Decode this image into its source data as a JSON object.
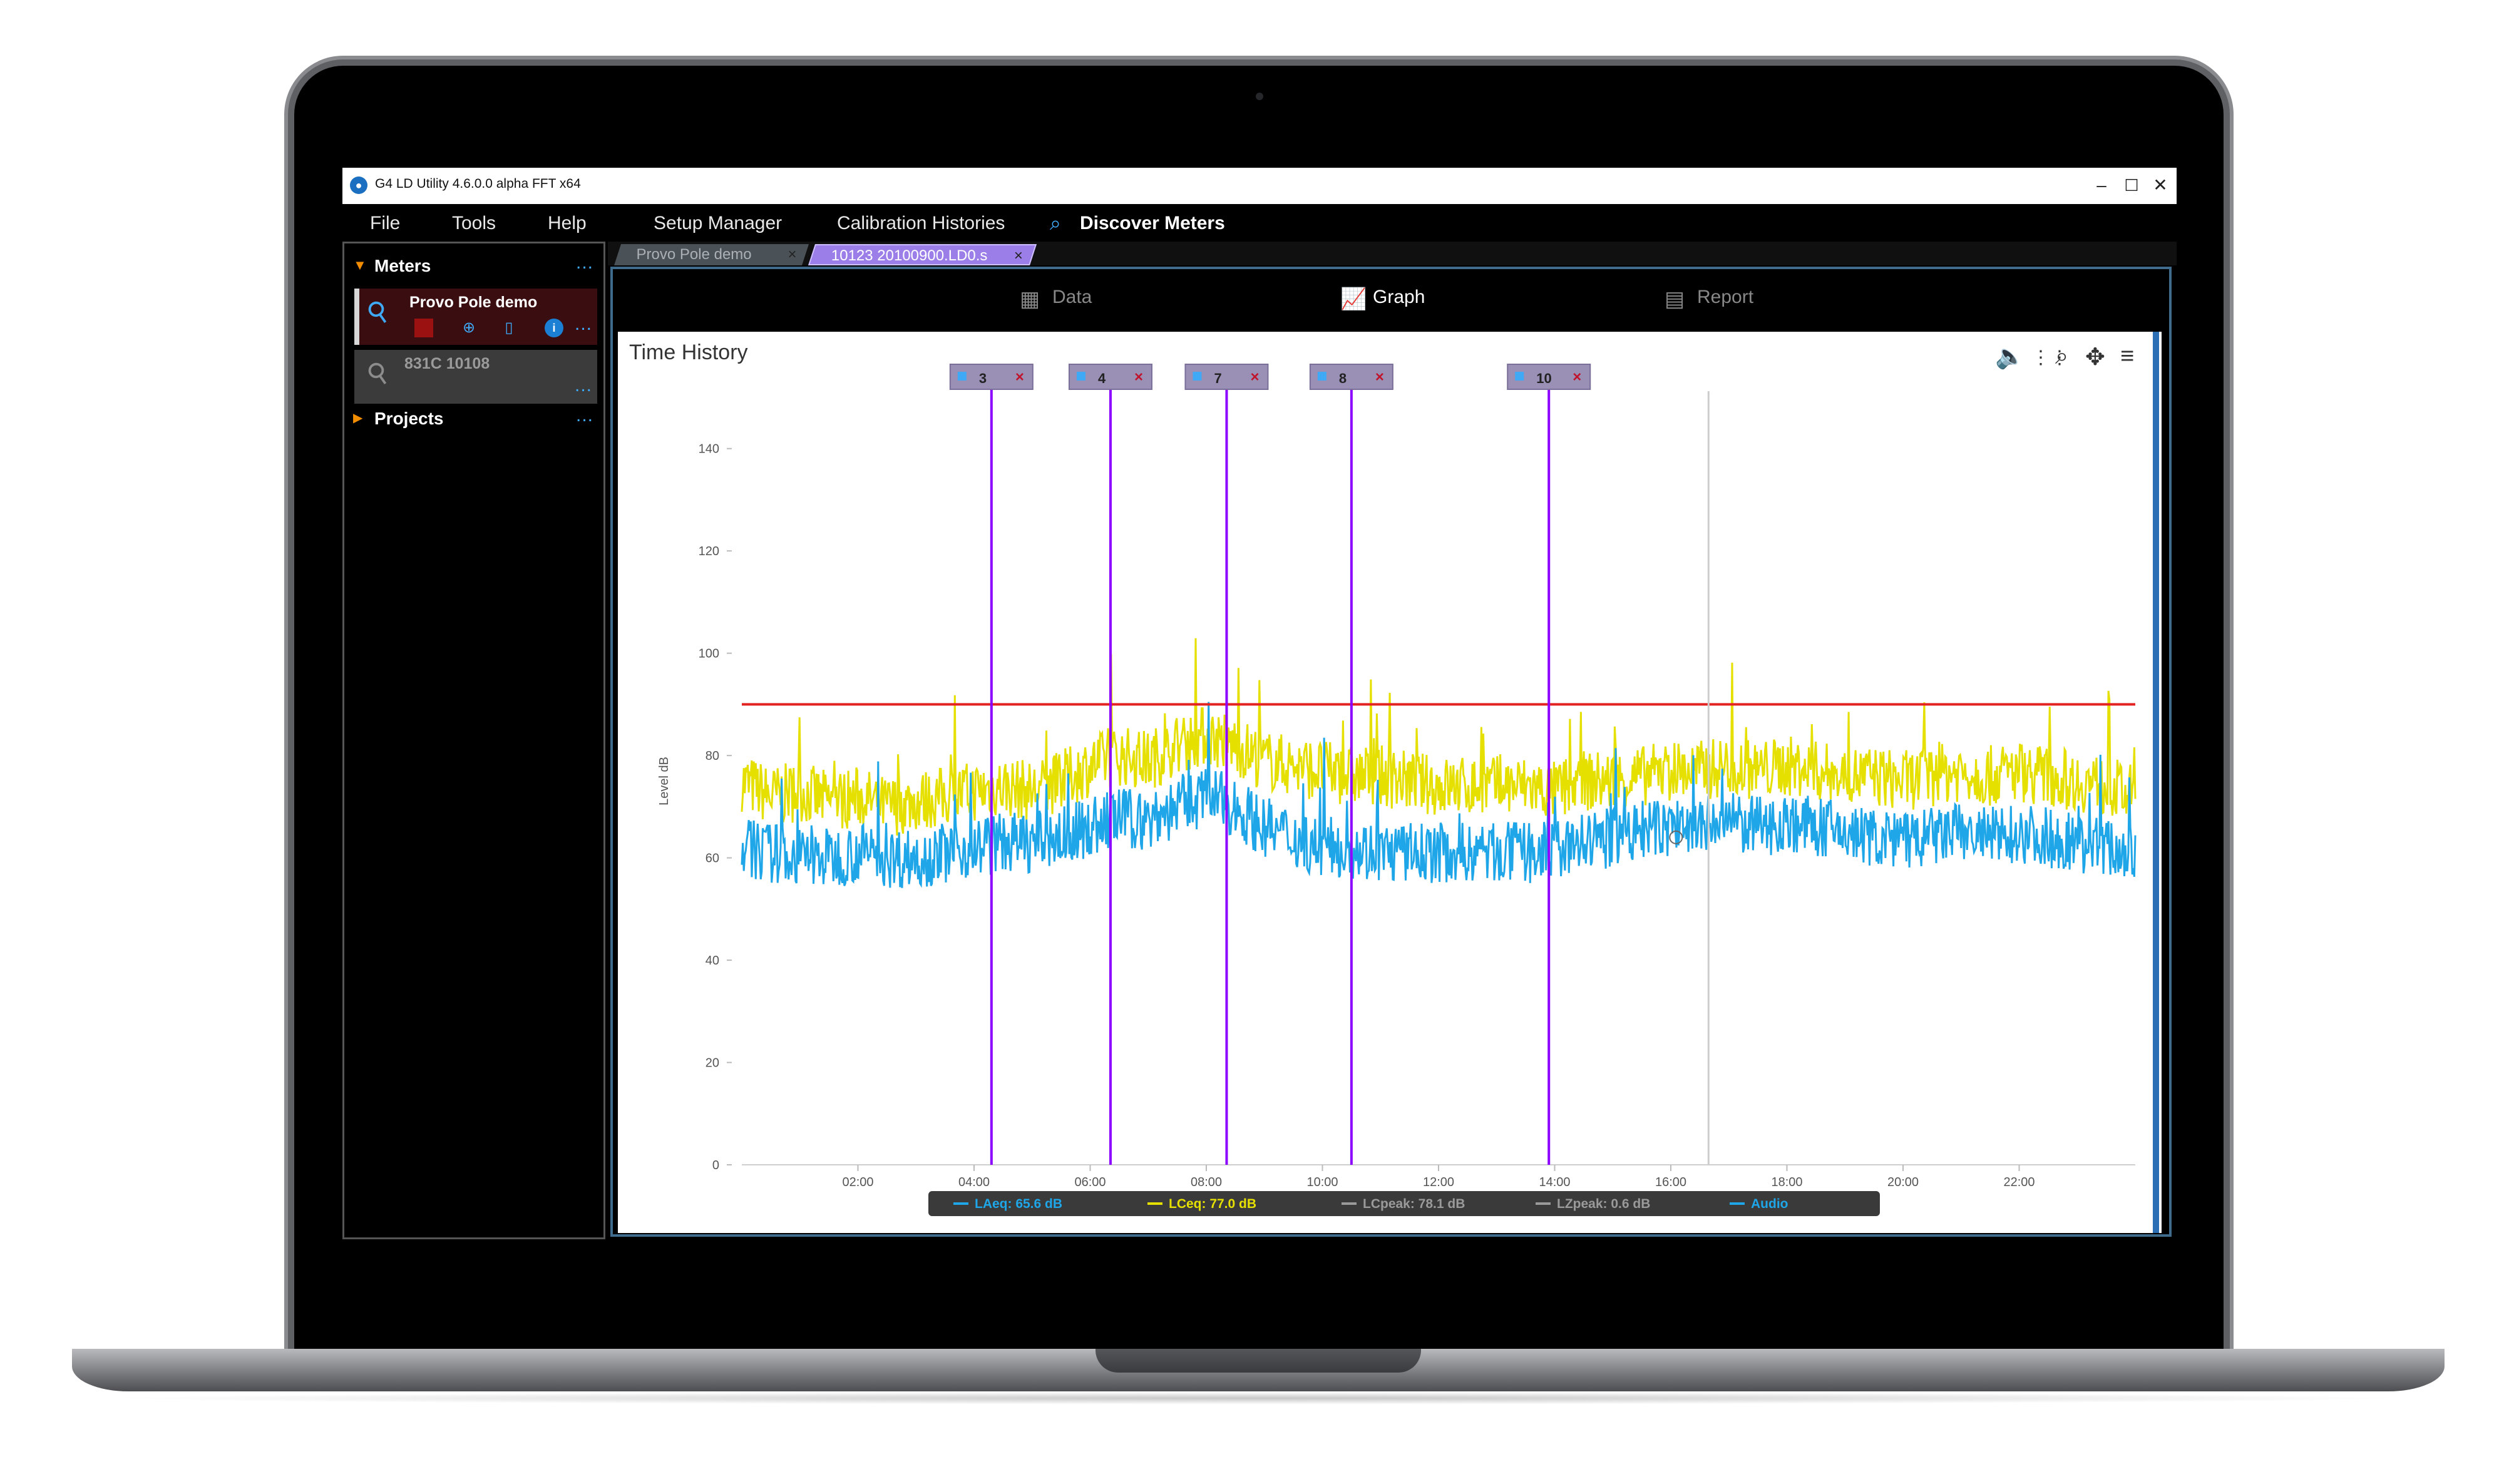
{
  "window": {
    "title": "G4 LD Utility 4.6.0.0 alpha FFT x64",
    "minimize": "–",
    "maximize": "☐",
    "close": "✕"
  },
  "menu": {
    "file": "File",
    "tools": "Tools",
    "help": "Help",
    "setup_manager": "Setup Manager",
    "calibration_histories": "Calibration Histories",
    "discover_meters": "Discover Meters"
  },
  "sidebar": {
    "meters_label": "Meters",
    "projects_label": "Projects",
    "more": "...",
    "meters": [
      {
        "name": "Provo Pole demo"
      },
      {
        "name": "831C 10108"
      }
    ]
  },
  "tabs": [
    {
      "label": "Provo Pole demo",
      "close": "×"
    },
    {
      "label": "10123 20100900.LD0.s",
      "close": "×"
    }
  ],
  "view_tabs": {
    "data": "Data",
    "graph": "Graph",
    "report": "Report"
  },
  "chart_data": {
    "type": "line",
    "title": "Time History",
    "ylabel": "Level dB",
    "xlabel": "",
    "ylim": [
      0,
      150
    ],
    "xlim": [
      0,
      24
    ],
    "yticks": [
      0,
      20,
      40,
      60,
      80,
      100,
      120,
      140
    ],
    "xticks": [
      {
        "t": 2,
        "label": "02:00"
      },
      {
        "t": 4,
        "label": "04:00"
      },
      {
        "t": 6,
        "label": "06:00"
      },
      {
        "t": 8,
        "label": "08:00"
      },
      {
        "t": 10,
        "label": "10:00"
      },
      {
        "t": 12,
        "label": "12:00"
      },
      {
        "t": 14,
        "label": "14:00"
      },
      {
        "t": 16,
        "label": "16:00"
      },
      {
        "t": 18,
        "label": "18:00"
      },
      {
        "t": 20,
        "label": "20:00"
      },
      {
        "t": 22,
        "label": "22:00"
      }
    ],
    "threshold": 90,
    "cursor_time": 16.65,
    "markers": [
      {
        "label": "3",
        "t": 4.3
      },
      {
        "label": "4",
        "t": 6.35
      },
      {
        "label": "7",
        "t": 8.35
      },
      {
        "label": "8",
        "t": 10.5
      },
      {
        "label": "10",
        "t": 13.9
      }
    ],
    "series": [
      {
        "name": "LCeq",
        "color": "#e6e000",
        "x": [
          0,
          0.5,
          1,
          1.5,
          2,
          2.5,
          3,
          3.5,
          4,
          4.5,
          5,
          5.5,
          6,
          6.5,
          7,
          7.5,
          8,
          8.5,
          9,
          9.5,
          10,
          10.5,
          11,
          11.5,
          12,
          12.5,
          13,
          13.5,
          14,
          14.5,
          15,
          15.5,
          16,
          16.5,
          17,
          17.5,
          18,
          18.5,
          19,
          19.5,
          20,
          20.5,
          21,
          21.5,
          22,
          22.5,
          23,
          23.5,
          24
        ],
        "y": [
          75,
          72,
          73,
          71,
          72,
          70,
          71,
          72,
          73,
          74,
          73,
          75,
          78,
          80,
          79,
          82,
          84,
          82,
          79,
          78,
          77,
          76,
          76,
          75,
          74,
          74,
          74,
          74,
          73,
          75,
          75,
          76,
          77,
          77,
          78,
          77,
          78,
          77,
          76,
          76,
          75,
          76,
          77,
          76,
          77,
          76,
          75,
          74,
          72
        ]
      },
      {
        "name": "LAeq",
        "color": "#1ea6e8",
        "x": [
          0,
          0.5,
          1,
          1.5,
          2,
          2.5,
          3,
          3.5,
          4,
          4.5,
          5,
          5.5,
          6,
          6.5,
          7,
          7.5,
          8,
          8.5,
          9,
          9.5,
          10,
          10.5,
          11,
          11.5,
          12,
          12.5,
          13,
          13.5,
          14,
          14.5,
          15,
          15.5,
          16,
          16.5,
          17,
          17.5,
          18,
          18.5,
          19,
          19.5,
          20,
          20.5,
          21,
          21.5,
          22,
          22.5,
          23,
          23.5,
          24
        ],
        "y": [
          62,
          61,
          60,
          60,
          61,
          60,
          60,
          61,
          62,
          63,
          63,
          64,
          66,
          68,
          67,
          70,
          72,
          70,
          66,
          64,
          62,
          62,
          61,
          61,
          61,
          61,
          61,
          61,
          61,
          63,
          64,
          65,
          66,
          66,
          67,
          66,
          67,
          66,
          65,
          64,
          63,
          64,
          65,
          64,
          65,
          64,
          63,
          62,
          61
        ]
      }
    ],
    "legend": [
      {
        "label": "LAeq: 65.6 dB",
        "color": "#1ea6e8"
      },
      {
        "label": "LCeq: 77.0 dB",
        "color": "#e6e000"
      },
      {
        "label": "LCpeak: 78.1 dB",
        "color": "#9a9a9a"
      },
      {
        "label": "LZpeak: 0.6 dB",
        "color": "#9a9a9a"
      },
      {
        "label": "Audio",
        "color": "#1ea6e8"
      }
    ],
    "colors": {
      "threshold": "#e32222",
      "marker": "#8b00ff",
      "marker_box": "#9a8fb5",
      "marker_x": "#c0142c"
    }
  },
  "icons": {
    "meter": "microphone-icon",
    "stop": "stop-icon",
    "globe": "globe-icon",
    "phone": "phone-icon",
    "info": "info-icon",
    "search": "search-icon",
    "data": "grid-icon",
    "graph": "chart-icon",
    "report": "report-icon"
  }
}
